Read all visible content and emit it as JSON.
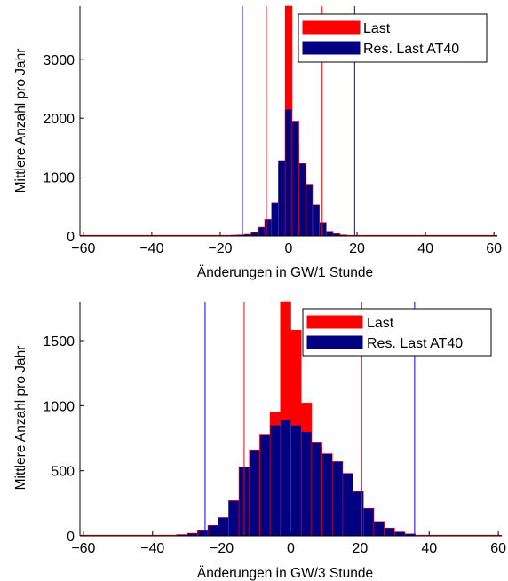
{
  "colors": {
    "series_last": "#ff0000",
    "series_res": "#000080",
    "edge_last": "#ff0000",
    "edge_res": "#ff0000",
    "vline_last": "#ff0000",
    "vline_res": "#0000ff",
    "axis": "#000000"
  },
  "chart_data": [
    {
      "type": "bar",
      "xlabel": "Änderungen in GW/1 Stunde",
      "ylabel": "Mittlere Anzahl pro Jahr",
      "xlim": [
        -61,
        61
      ],
      "ylim": [
        0,
        3900
      ],
      "xticks": [
        -60,
        -40,
        -20,
        0,
        20,
        40,
        60
      ],
      "yticks": [
        0,
        1000,
        2000,
        3000
      ],
      "bin_width": 2,
      "grid": false,
      "legend_position": "top-right",
      "series": [
        {
          "name": "Last",
          "x": [
            -8,
            -6,
            -4,
            -2,
            0,
            2,
            4,
            6,
            8,
            10
          ],
          "values": [
            10,
            60,
            300,
            1200,
            3900,
            1600,
            360,
            300,
            120,
            20
          ]
        },
        {
          "name": "Res. Last AT40",
          "x": [
            -28,
            -26,
            -24,
            -22,
            -20,
            -18,
            -16,
            -14,
            -12,
            -10,
            -8,
            -6,
            -4,
            -2,
            0,
            2,
            4,
            6,
            8,
            10,
            12,
            14,
            16,
            18,
            20,
            22,
            24,
            26
          ],
          "values": [
            0,
            2,
            3,
            5,
            8,
            10,
            15,
            20,
            30,
            60,
            150,
            280,
            560,
            1280,
            2150,
            1950,
            1230,
            880,
            530,
            230,
            80,
            40,
            20,
            10,
            5,
            3,
            2,
            1
          ]
        }
      ],
      "vlines": [
        {
          "x": -6.5,
          "series": "Last"
        },
        {
          "x": 9.8,
          "series": "Last"
        },
        {
          "x": -13.5,
          "series": "Res. Last AT40"
        },
        {
          "x": 19.3,
          "series": "Res. Last AT40"
        }
      ],
      "legend": [
        "Last",
        "Res. Last AT40"
      ]
    },
    {
      "type": "bar",
      "xlabel": "Änderungen in GW/3 Stunde",
      "ylabel": "Mittlere Anzahl pro Jahr",
      "xlim": [
        -61,
        61
      ],
      "ylim": [
        0,
        1800
      ],
      "xticks": [
        -60,
        -40,
        -20,
        0,
        20,
        40,
        60
      ],
      "yticks": [
        0,
        500,
        1000,
        1500
      ],
      "bin_width": 3,
      "grid": false,
      "legend_position": "top-right",
      "series": [
        {
          "name": "Last",
          "x": [
            -16.5,
            -13.5,
            -10.5,
            -7.5,
            -4.5,
            -1.5,
            1.5,
            4.5,
            7.5,
            10.5,
            13.5,
            16.5,
            19.5
          ],
          "values": [
            10,
            150,
            250,
            500,
            950,
            1800,
            1580,
            1020,
            680,
            420,
            230,
            130,
            40
          ]
        },
        {
          "name": "Res. Last AT40",
          "x": [
            -34.5,
            -31.5,
            -28.5,
            -25.5,
            -22.5,
            -19.5,
            -16.5,
            -13.5,
            -10.5,
            -7.5,
            -4.5,
            -1.5,
            1.5,
            4.5,
            7.5,
            10.5,
            13.5,
            16.5,
            19.5,
            22.5,
            25.5,
            28.5,
            31.5,
            34.5,
            37.5,
            40.5,
            43.5
          ],
          "values": [
            5,
            10,
            20,
            40,
            80,
            140,
            270,
            530,
            660,
            780,
            850,
            890,
            850,
            800,
            720,
            630,
            570,
            480,
            340,
            210,
            110,
            60,
            30,
            15,
            5,
            3,
            2
          ]
        }
      ],
      "vlines": [
        {
          "x": -13.5,
          "series": "Last"
        },
        {
          "x": 20.5,
          "series": "Last"
        },
        {
          "x": -24.8,
          "series": "Res. Last AT40"
        },
        {
          "x": 35.8,
          "series": "Res. Last AT40"
        }
      ],
      "legend": [
        "Last",
        "Res. Last AT40"
      ]
    }
  ]
}
